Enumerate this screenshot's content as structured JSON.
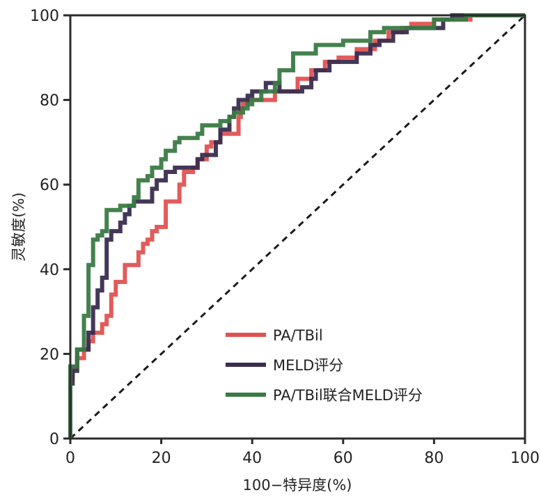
{
  "chart_data": {
    "type": "line",
    "subtype": "roc-step",
    "title": "",
    "xlabel": "100−特异度(%)",
    "ylabel": "灵敏度(%)",
    "xlim": [
      0,
      100
    ],
    "ylim": [
      0,
      100
    ],
    "xticks": [
      0,
      20,
      40,
      60,
      80,
      100
    ],
    "yticks": [
      0,
      20,
      40,
      60,
      80,
      100
    ],
    "xtick_labels": [
      "0",
      "20",
      "40",
      "60",
      "80",
      "100"
    ],
    "ytick_labels": [
      "0",
      "20",
      "40",
      "60",
      "80",
      "100"
    ],
    "grid": false,
    "legend_position": "bottom-right",
    "reference_line": {
      "name": "chance",
      "style": "dashed",
      "color": "#1a1a1a",
      "points": [
        [
          0,
          0
        ],
        [
          100,
          100
        ]
      ]
    },
    "series": [
      {
        "name": "PA/TBil",
        "color": "#e05252",
        "points": [
          [
            0,
            0
          ],
          [
            0,
            14
          ],
          [
            0.5,
            14
          ],
          [
            0.5,
            17
          ],
          [
            1.5,
            17
          ],
          [
            1.5,
            19
          ],
          [
            3,
            19
          ],
          [
            3,
            21
          ],
          [
            4,
            21
          ],
          [
            4,
            23
          ],
          [
            5,
            23
          ],
          [
            5,
            25
          ],
          [
            7,
            25
          ],
          [
            7,
            27
          ],
          [
            8,
            27
          ],
          [
            8,
            29
          ],
          [
            9,
            29
          ],
          [
            9,
            34
          ],
          [
            10,
            34
          ],
          [
            10,
            37
          ],
          [
            12,
            37
          ],
          [
            12,
            41
          ],
          [
            15,
            41
          ],
          [
            15,
            44
          ],
          [
            16,
            44
          ],
          [
            16,
            46
          ],
          [
            17,
            46
          ],
          [
            17,
            47
          ],
          [
            18,
            47
          ],
          [
            18,
            49
          ],
          [
            19,
            49
          ],
          [
            19,
            50
          ],
          [
            21,
            50
          ],
          [
            21,
            56
          ],
          [
            24,
            56
          ],
          [
            24,
            60
          ],
          [
            25,
            60
          ],
          [
            25,
            63
          ],
          [
            27,
            63
          ],
          [
            27,
            64
          ],
          [
            28,
            64
          ],
          [
            28,
            66
          ],
          [
            30,
            66
          ],
          [
            30,
            69
          ],
          [
            31,
            69
          ],
          [
            31,
            70
          ],
          [
            33,
            70
          ],
          [
            33,
            72
          ],
          [
            37,
            72
          ],
          [
            37,
            76
          ],
          [
            37.5,
            76
          ],
          [
            37.5,
            78
          ],
          [
            38,
            78
          ],
          [
            38,
            79
          ],
          [
            39,
            79
          ],
          [
            39,
            80
          ],
          [
            45,
            80
          ],
          [
            45,
            82
          ],
          [
            50,
            82
          ],
          [
            50,
            85
          ],
          [
            53,
            85
          ],
          [
            53,
            87
          ],
          [
            56,
            87
          ],
          [
            56,
            89
          ],
          [
            59,
            89
          ],
          [
            59,
            90
          ],
          [
            63,
            90
          ],
          [
            63,
            92
          ],
          [
            67,
            92
          ],
          [
            67,
            94
          ],
          [
            70,
            94
          ],
          [
            70,
            96
          ],
          [
            73,
            96
          ],
          [
            73,
            97
          ],
          [
            75,
            97
          ],
          [
            75,
            98
          ],
          [
            80,
            98
          ],
          [
            80,
            99
          ],
          [
            88,
            99
          ],
          [
            88,
            100
          ],
          [
            100,
            100
          ]
        ]
      },
      {
        "name": "MELD评分",
        "color": "#3a2d4f",
        "points": [
          [
            0,
            0
          ],
          [
            0,
            13
          ],
          [
            0.5,
            13
          ],
          [
            0.5,
            16
          ],
          [
            1.5,
            16
          ],
          [
            1.5,
            21
          ],
          [
            4,
            21
          ],
          [
            4,
            25
          ],
          [
            5,
            25
          ],
          [
            5,
            31
          ],
          [
            6,
            31
          ],
          [
            6,
            35
          ],
          [
            7,
            35
          ],
          [
            7,
            38
          ],
          [
            8,
            38
          ],
          [
            8,
            47
          ],
          [
            9,
            47
          ],
          [
            9,
            49
          ],
          [
            11,
            49
          ],
          [
            11,
            51
          ],
          [
            12,
            51
          ],
          [
            12,
            53
          ],
          [
            13,
            53
          ],
          [
            13,
            55
          ],
          [
            14,
            55
          ],
          [
            14,
            56
          ],
          [
            18,
            56
          ],
          [
            18,
            59
          ],
          [
            19,
            59
          ],
          [
            19,
            61
          ],
          [
            21,
            61
          ],
          [
            21,
            63
          ],
          [
            23,
            63
          ],
          [
            23,
            64
          ],
          [
            28,
            64
          ],
          [
            28,
            66
          ],
          [
            29,
            66
          ],
          [
            29,
            67
          ],
          [
            32,
            67
          ],
          [
            32,
            70
          ],
          [
            33,
            70
          ],
          [
            33,
            73
          ],
          [
            35,
            73
          ],
          [
            35,
            76
          ],
          [
            36,
            76
          ],
          [
            36,
            78
          ],
          [
            37,
            78
          ],
          [
            37,
            80
          ],
          [
            39,
            80
          ],
          [
            39,
            81
          ],
          [
            40,
            81
          ],
          [
            40,
            82
          ],
          [
            43,
            82
          ],
          [
            43,
            84
          ],
          [
            46,
            84
          ],
          [
            46,
            82
          ],
          [
            51,
            82
          ],
          [
            51,
            83
          ],
          [
            53,
            83
          ],
          [
            53,
            85
          ],
          [
            54,
            85
          ],
          [
            54,
            87
          ],
          [
            57,
            87
          ],
          [
            57,
            89
          ],
          [
            63,
            89
          ],
          [
            63,
            91
          ],
          [
            66,
            91
          ],
          [
            66,
            93
          ],
          [
            68,
            93
          ],
          [
            68,
            94
          ],
          [
            71,
            94
          ],
          [
            71,
            96
          ],
          [
            74,
            96
          ],
          [
            74,
            97
          ],
          [
            82,
            97
          ],
          [
            82,
            99
          ],
          [
            84,
            99
          ],
          [
            84,
            100
          ],
          [
            100,
            100
          ]
        ]
      },
      {
        "name": "PA/TBil联合MELD评分",
        "color": "#3a7a45",
        "points": [
          [
            0,
            0
          ],
          [
            0,
            17
          ],
          [
            1.5,
            17
          ],
          [
            1.5,
            21
          ],
          [
            3,
            21
          ],
          [
            3,
            29
          ],
          [
            4,
            29
          ],
          [
            4,
            41
          ],
          [
            5,
            41
          ],
          [
            5,
            47
          ],
          [
            6,
            47
          ],
          [
            6,
            48
          ],
          [
            7,
            48
          ],
          [
            7,
            49
          ],
          [
            8,
            49
          ],
          [
            8,
            54
          ],
          [
            11,
            54
          ],
          [
            11,
            55
          ],
          [
            14,
            55
          ],
          [
            14,
            57
          ],
          [
            15,
            57
          ],
          [
            15,
            61
          ],
          [
            17,
            61
          ],
          [
            17,
            62
          ],
          [
            18,
            62
          ],
          [
            18,
            64
          ],
          [
            20,
            64
          ],
          [
            20,
            66
          ],
          [
            21,
            66
          ],
          [
            21,
            68
          ],
          [
            23,
            68
          ],
          [
            23,
            70
          ],
          [
            24,
            70
          ],
          [
            24,
            71
          ],
          [
            28,
            71
          ],
          [
            28,
            72
          ],
          [
            29,
            72
          ],
          [
            29,
            74
          ],
          [
            33,
            74
          ],
          [
            33,
            75
          ],
          [
            35,
            75
          ],
          [
            35,
            76
          ],
          [
            36,
            76
          ],
          [
            36,
            77
          ],
          [
            38,
            77
          ],
          [
            38,
            78
          ],
          [
            39,
            78
          ],
          [
            39,
            79
          ],
          [
            40,
            79
          ],
          [
            40,
            80
          ],
          [
            42,
            80
          ],
          [
            42,
            82
          ],
          [
            45,
            82
          ],
          [
            45,
            84
          ],
          [
            46,
            84
          ],
          [
            46,
            87
          ],
          [
            49,
            87
          ],
          [
            49,
            91
          ],
          [
            54,
            91
          ],
          [
            54,
            93
          ],
          [
            60,
            93
          ],
          [
            60,
            94
          ],
          [
            66,
            94
          ],
          [
            66,
            96
          ],
          [
            69,
            96
          ],
          [
            69,
            97
          ],
          [
            80,
            97
          ],
          [
            80,
            99
          ],
          [
            87,
            99
          ],
          [
            87,
            100
          ],
          [
            100,
            100
          ]
        ]
      }
    ]
  }
}
